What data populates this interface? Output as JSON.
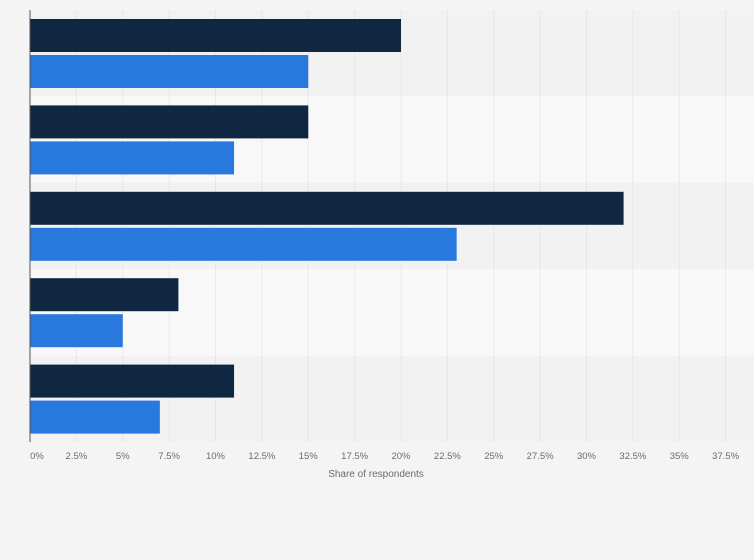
{
  "chart_data": {
    "type": "bar",
    "orientation": "horizontal",
    "categories": [
      "",
      "",
      "",
      "",
      ""
    ],
    "series": [
      {
        "values": [
          20,
          15,
          32,
          8,
          11
        ],
        "color": "#0f2740"
      },
      {
        "values": [
          15,
          11,
          23,
          5,
          7
        ],
        "color": "#2878dd"
      }
    ],
    "xlabel": "Share of respondents",
    "ylabel": "",
    "xlim": [
      0,
      37.5
    ],
    "xticks": [
      "0%",
      "2.5%",
      "5%",
      "7.5%",
      "10%",
      "12.5%",
      "15%",
      "17.5%",
      "20%",
      "22.5%",
      "25%",
      "27.5%",
      "30%",
      "32.5%",
      "35%",
      "37.5%"
    ],
    "xtick_values": [
      0,
      2.5,
      5,
      7.5,
      10,
      12.5,
      15,
      17.5,
      20,
      22.5,
      25,
      27.5,
      30,
      32.5,
      35,
      37.5
    ],
    "grid": true,
    "legend": "none"
  }
}
